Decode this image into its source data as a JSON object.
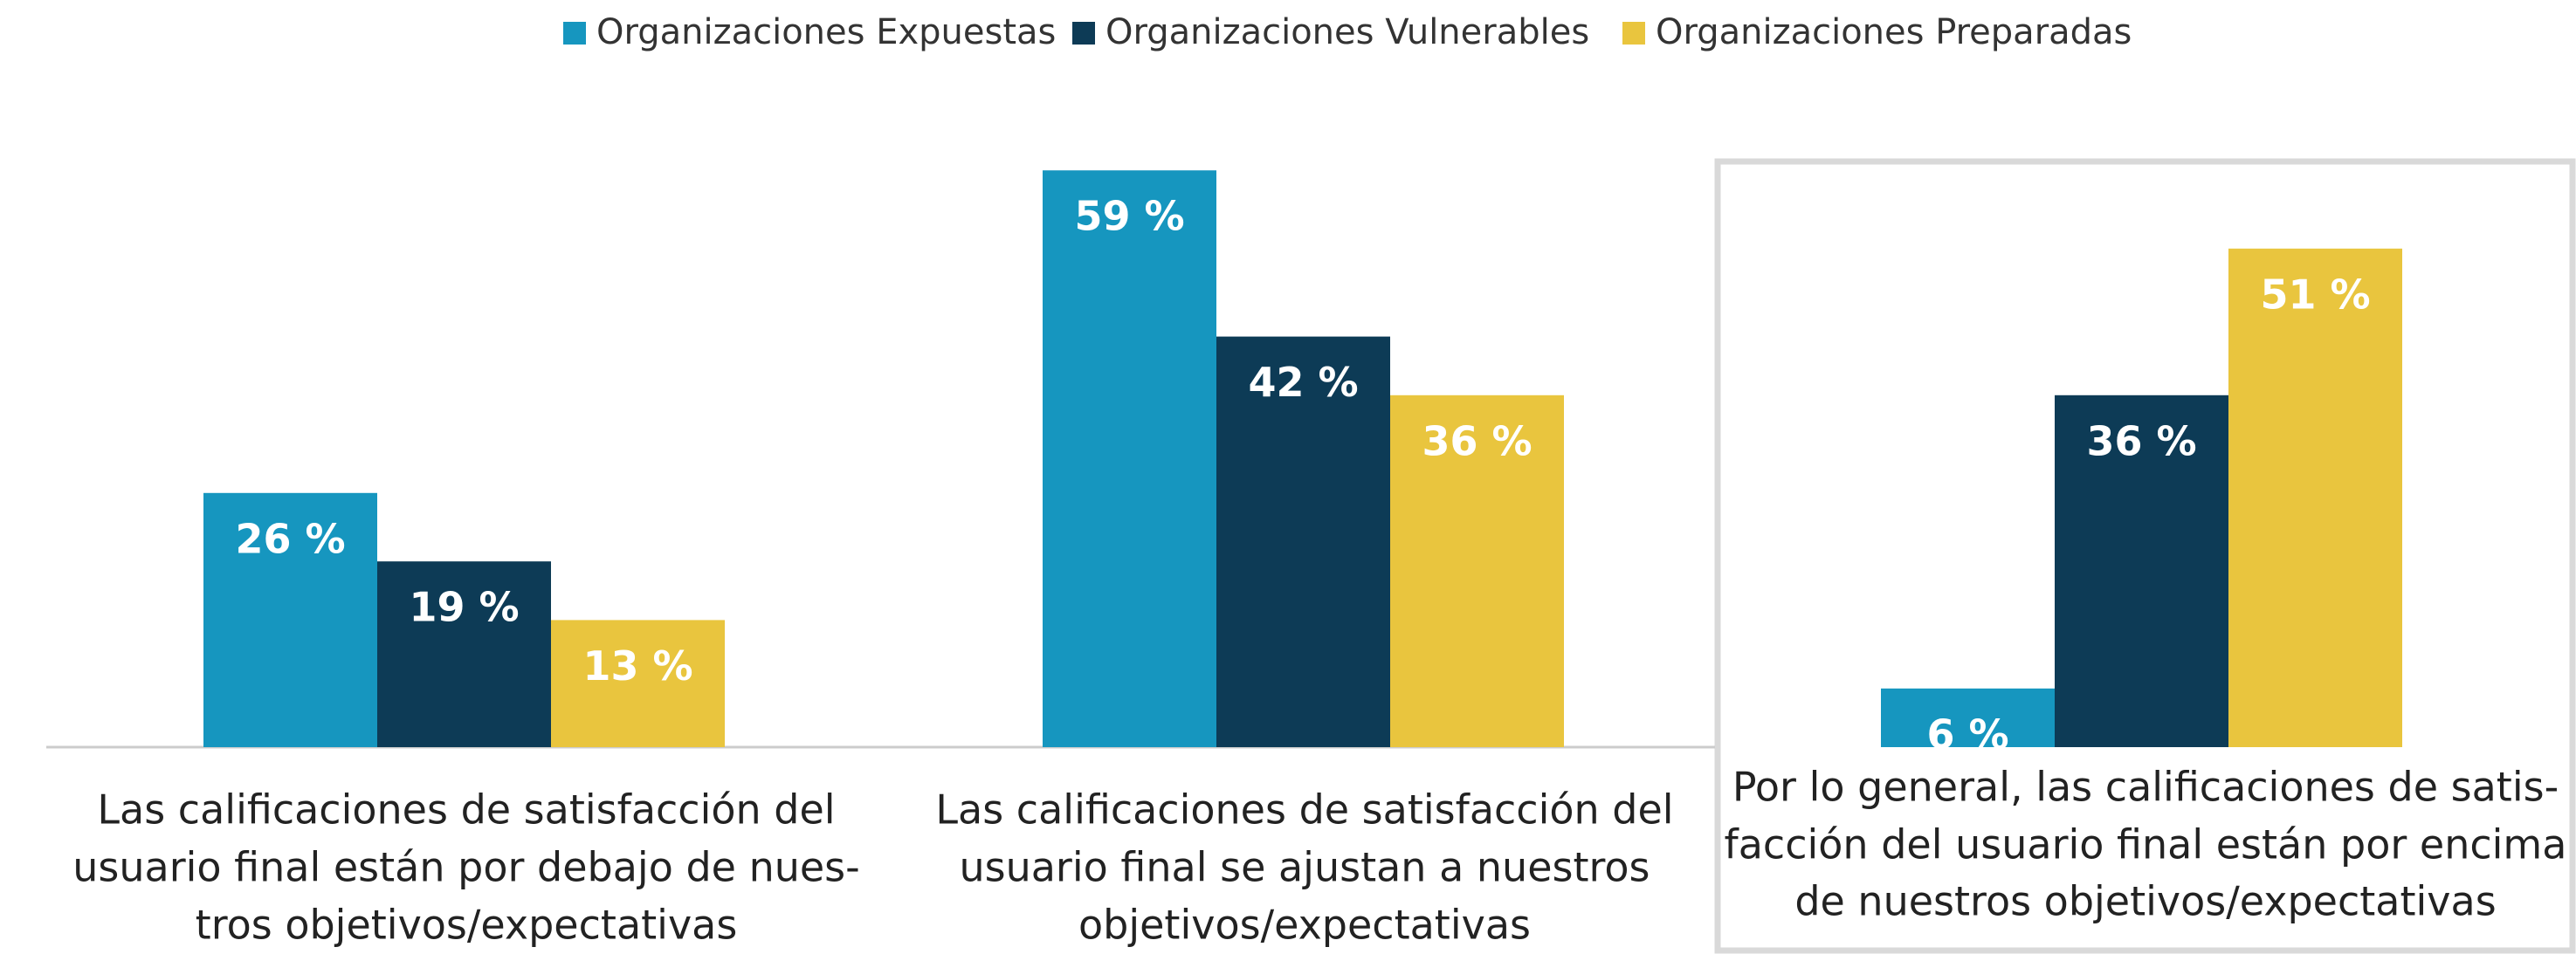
{
  "chart_data": {
    "type": "bar",
    "categories": [
      [
        "Las calificaciones de satisfacción del",
        "usuario final están por debajo de nues-",
        "tros objetivos/expectativas"
      ],
      [
        "Las calificaciones de satisfacción del",
        "usuario final se ajustan a nuestros",
        "objetivos/expectativas"
      ],
      [
        "Por lo general, las calificaciones de satis-",
        "facción del usuario final están por encima",
        "de nuestros objetivos/expectativas"
      ]
    ],
    "series": [
      {
        "name": "Organizaciones Expuestas",
        "color": "#1696bf",
        "values": [
          26,
          59,
          6
        ],
        "value_labels": [
          "26 %",
          "59 %",
          "6 %"
        ]
      },
      {
        "name": "Organizaciones Vulnerables",
        "color": "#0d3b56",
        "values": [
          19,
          42,
          36
        ],
        "value_labels": [
          "19 %",
          "42 %",
          "36 %"
        ]
      },
      {
        "name": "Organizaciones Preparadas",
        "color": "#e9c53e",
        "values": [
          13,
          36,
          51
        ],
        "value_labels": [
          "13 %",
          "36 %",
          "51 %"
        ]
      }
    ],
    "legend": "top"
  }
}
